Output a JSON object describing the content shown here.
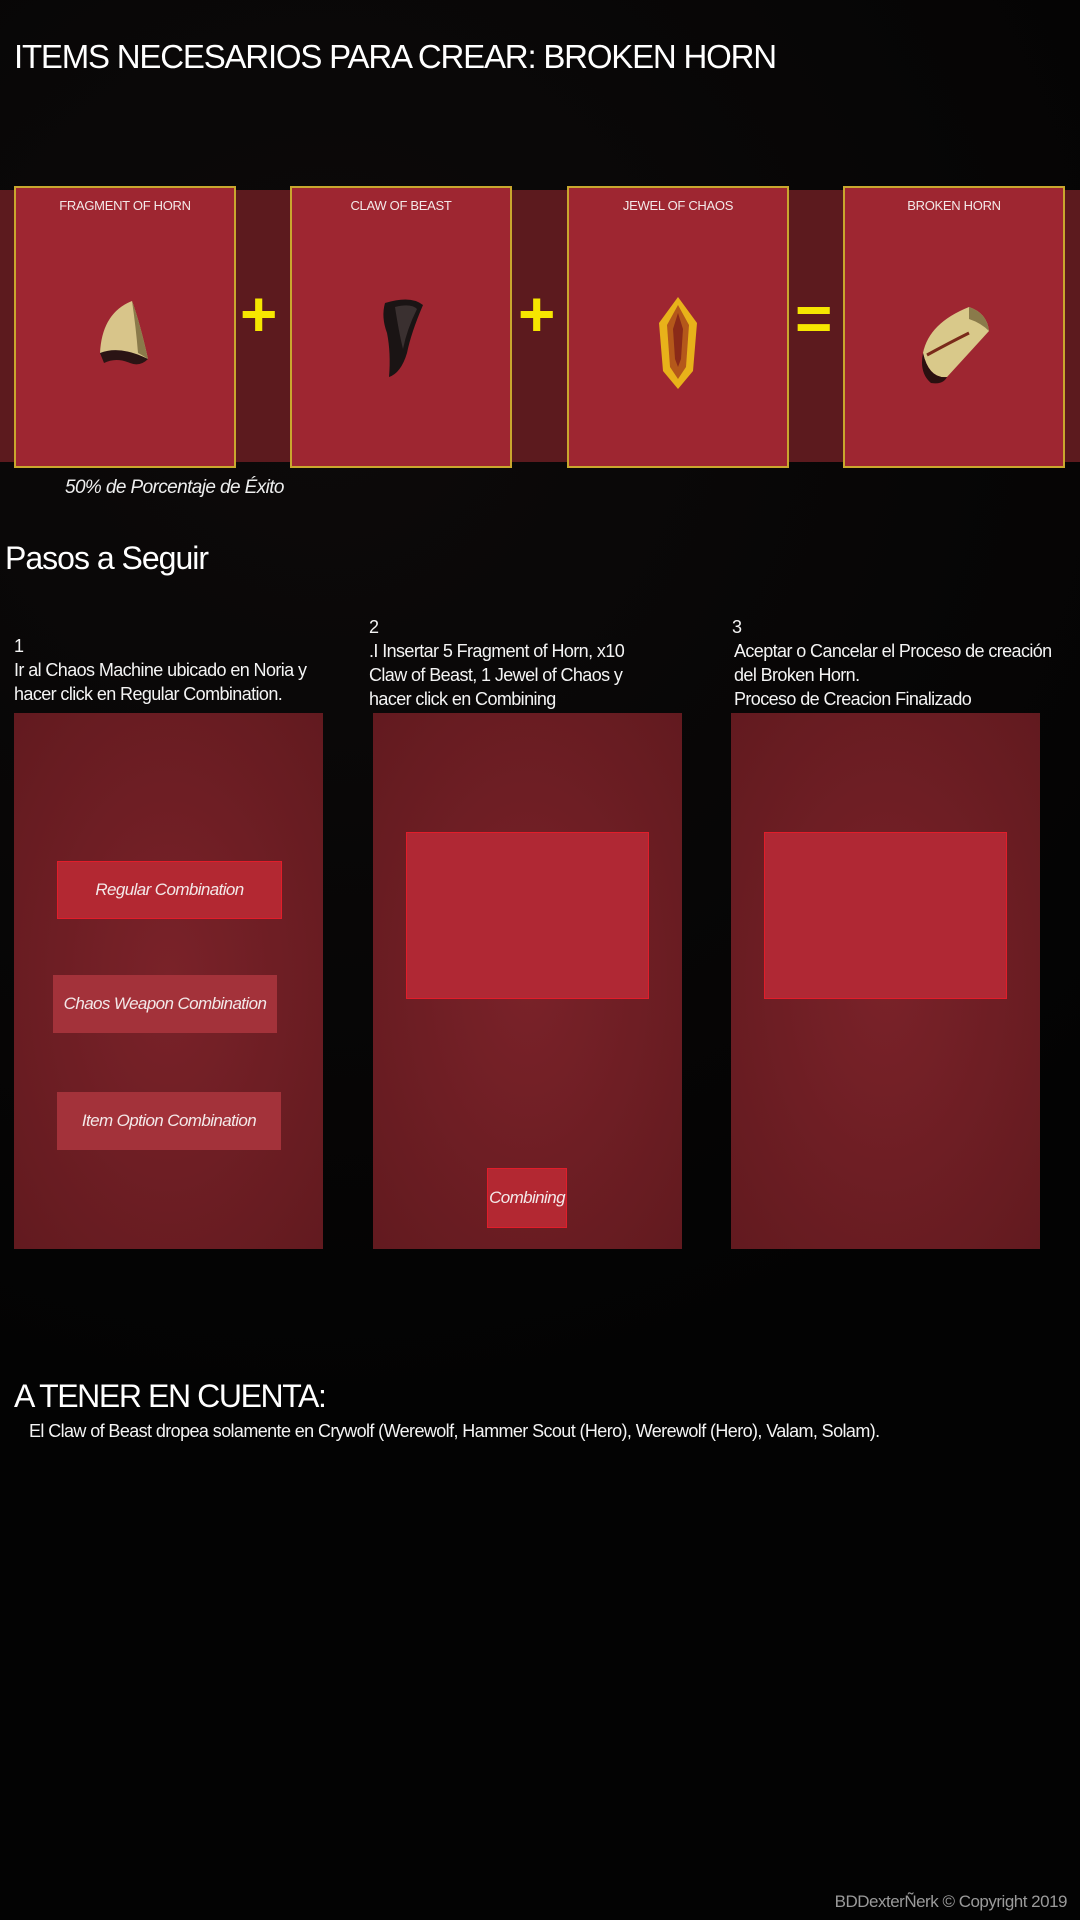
{
  "page_title": "ITEMS NECESARIOS PARA CREAR: BROKEN HORN",
  "recipe": {
    "items": [
      {
        "name": "FRAGMENT OF HORN",
        "icon": "fragment-of-horn-icon"
      },
      {
        "name": "CLAW OF BEAST",
        "icon": "claw-of-beast-icon"
      },
      {
        "name": "JEWEL OF CHAOS",
        "icon": "jewel-of-chaos-icon"
      },
      {
        "name": "BROKEN HORN",
        "icon": "broken-horn-icon"
      }
    ],
    "operators": [
      "+",
      "+",
      "="
    ],
    "success_rate": "50% de Porcentaje de Éxito"
  },
  "steps": {
    "title": "Pasos a Seguir",
    "items": [
      {
        "number": "1",
        "text": "Ir al Chaos Machine ubicado en Noria y\nhacer click en Regular Combination."
      },
      {
        "number": "2",
        "text": ".I Insertar 5 Fragment of Horn, x10\nClaw of Beast, 1 Jewel of Chaos y\nhacer click en Combining"
      },
      {
        "number": "3",
        "text": "Aceptar o Cancelar el Proceso de creación\n del Broken Horn.\n  Proceso de Creacion Finalizado"
      }
    ],
    "menu_buttons": [
      "Regular Combination",
      "Chaos Weapon Combination",
      "Item Option Combination"
    ],
    "combining_label": "Combining"
  },
  "note": {
    "title": "A TENER EN CUENTA:",
    "text": "El Claw of Beast dropea solamente en Crywolf (Werewolf, Hammer Scout (Hero), Werewolf (Hero), Valam, Solam)."
  },
  "copyright": "BDDexterÑerk © Copyright 2019",
  "colors": {
    "accent_yellow": "#f6e600",
    "card_red": "#9e2631",
    "card_border": "#c9a72e",
    "button_border": "#e21d2a"
  }
}
